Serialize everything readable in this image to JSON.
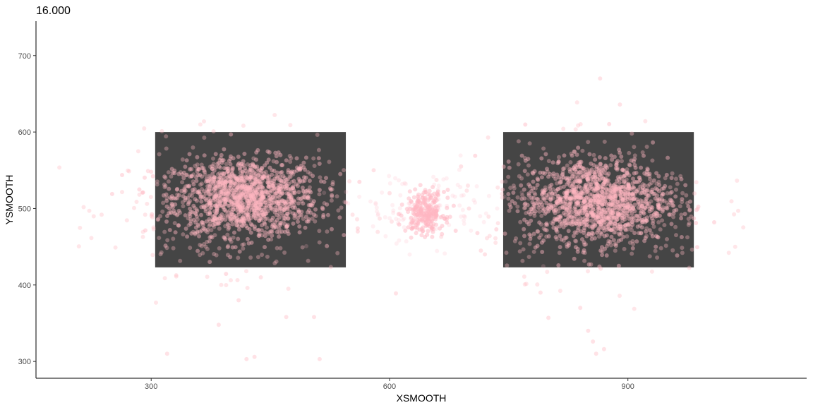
{
  "chart_data": {
    "type": "scatter",
    "title": "16.000",
    "xlabel": "XSMOOTH",
    "ylabel": "YSMOOTH",
    "xlim": [
      155,
      1125
    ],
    "ylim": [
      278,
      745
    ],
    "x_ticks": [
      300,
      600,
      900
    ],
    "y_ticks": [
      300,
      400,
      500,
      600,
      700
    ],
    "grid": false,
    "legend": "none",
    "point_color": "#ffb6c1",
    "box_color": "#454545",
    "rects": [
      {
        "xmin": 305,
        "xmax": 545,
        "ymin": 423,
        "ymax": 600
      },
      {
        "xmin": 743,
        "xmax": 983,
        "ymin": 423,
        "ymax": 600
      }
    ],
    "clusters": [
      {
        "cx": 420,
        "cy": 515,
        "sx": 45,
        "sy": 25,
        "n": 1100,
        "alpha": 0.45
      },
      {
        "cx": 395,
        "cy": 500,
        "sx": 70,
        "sy": 42,
        "n": 350,
        "alpha": 0.35
      },
      {
        "cx": 860,
        "cy": 510,
        "sx": 45,
        "sy": 28,
        "n": 1100,
        "alpha": 0.45
      },
      {
        "cx": 865,
        "cy": 500,
        "sx": 70,
        "sy": 42,
        "n": 350,
        "alpha": 0.35
      },
      {
        "cx": 645,
        "cy": 495,
        "sx": 12,
        "sy": 14,
        "n": 240,
        "alpha": 0.5
      },
      {
        "cx": 640,
        "cy": 500,
        "sx": 60,
        "sy": 25,
        "n": 110,
        "alpha": 0.2
      }
    ],
    "outliers": [
      [
        385,
        348
      ],
      [
        320,
        310
      ],
      [
        420,
        303
      ],
      [
        470,
        358
      ],
      [
        505,
        358
      ],
      [
        512,
        303
      ],
      [
        410,
        380
      ],
      [
        438,
        410
      ],
      [
        608,
        389
      ],
      [
        840,
        370
      ],
      [
        850,
        340
      ],
      [
        856,
        326
      ],
      [
        870,
        316
      ],
      [
        860,
        310
      ],
      [
        890,
        636
      ],
      [
        865,
        670
      ],
      [
        790,
        390
      ],
      [
        800,
        357
      ],
      [
        715,
        445
      ],
      [
        720,
        440
      ],
      [
        296,
        549
      ],
      [
        300,
        548
      ],
      [
        430,
        306
      ],
      [
        560,
        474
      ],
      [
        560,
        470
      ],
      [
        600,
        520
      ],
      [
        580,
        550
      ],
      [
        690,
        555
      ],
      [
        700,
        500
      ],
      [
        905,
        598
      ]
    ]
  }
}
